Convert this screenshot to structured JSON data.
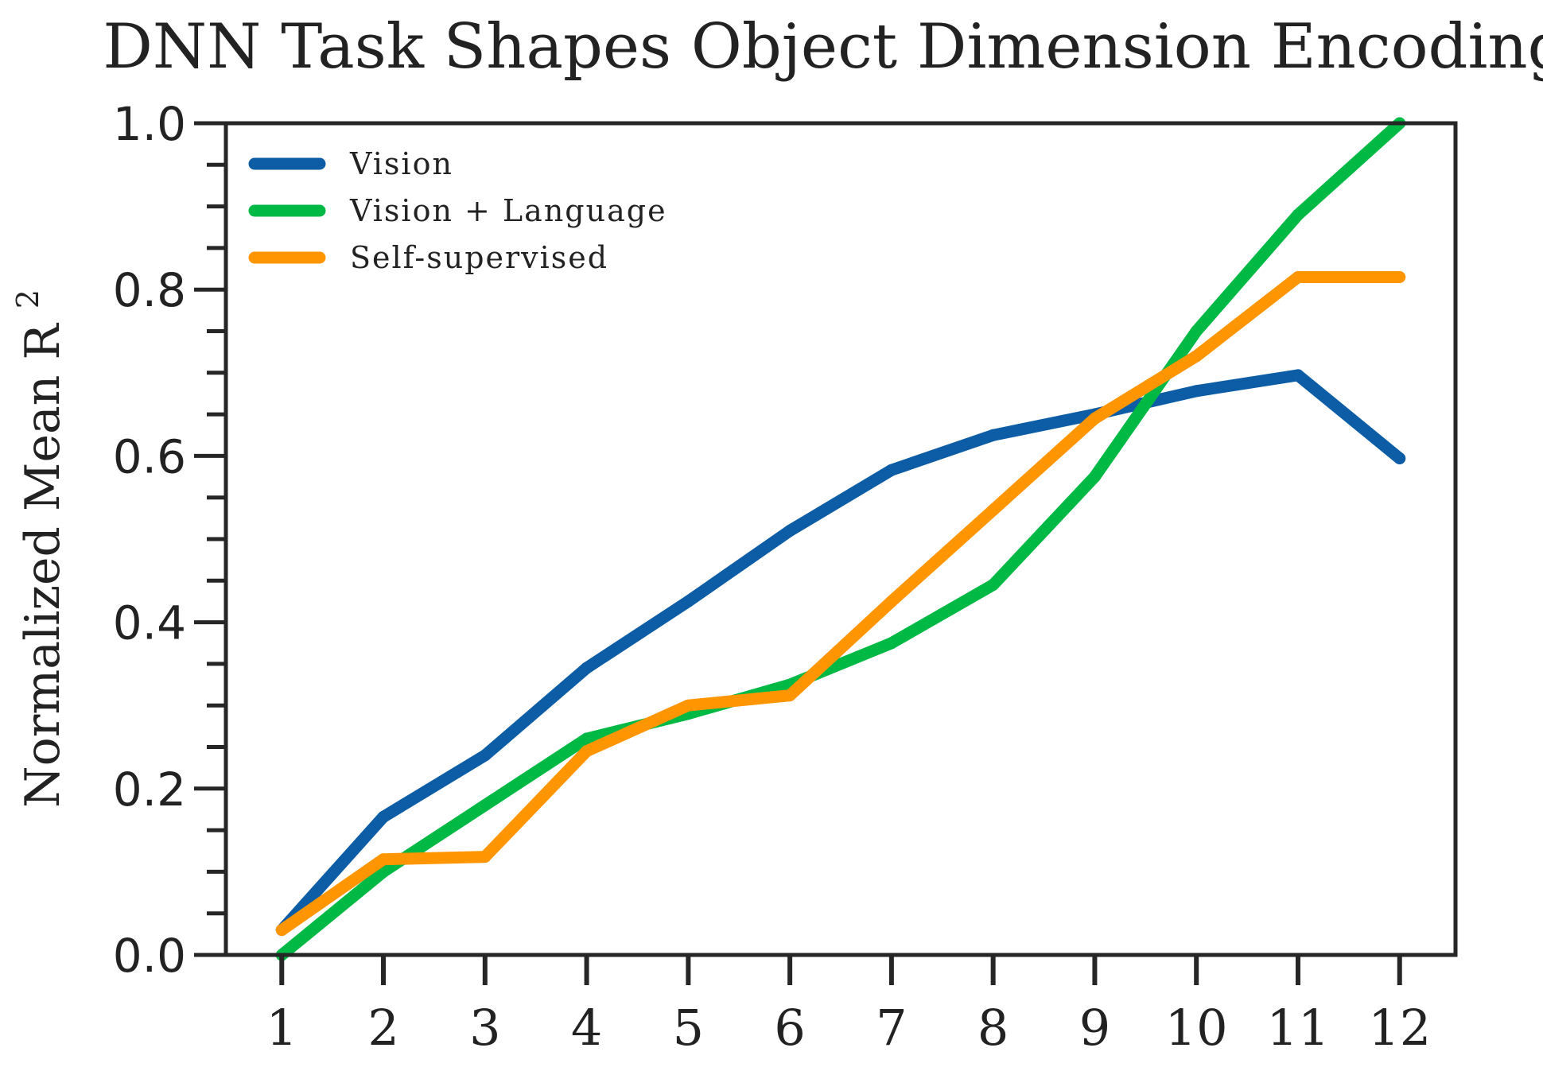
{
  "chart_data": {
    "type": "line",
    "title": "DNN Task Shapes Object Dimension Encoding",
    "xlabel": "",
    "ylabel_main": "Normalized Mean R",
    "ylabel_sup": "2",
    "x": [
      1,
      2,
      3,
      4,
      5,
      6,
      7,
      8,
      9,
      10,
      11,
      12
    ],
    "x_tick_labels": [
      "1",
      "2",
      "3",
      "4",
      "5",
      "6",
      "7",
      "8",
      "9",
      "10",
      "11",
      "12"
    ],
    "y_tick_labels": [
      "0.0",
      "0.2",
      "0.4",
      "0.6",
      "0.8",
      "1.0"
    ],
    "y_ticks": [
      0.0,
      0.2,
      0.4,
      0.6,
      0.8,
      1.0
    ],
    "ylim": [
      0.0,
      1.0
    ],
    "xlim": [
      0.45,
      12.55
    ],
    "grid": false,
    "legend_position": "top-left",
    "series": [
      {
        "name": "Vision",
        "color": "#0C5DA5",
        "values": [
          0.03,
          0.166,
          0.24,
          0.345,
          0.425,
          0.51,
          0.583,
          0.625,
          0.65,
          0.678,
          0.697,
          0.597
        ]
      },
      {
        "name": "Vision + Language",
        "color": "#00B945",
        "values": [
          0.0,
          0.1,
          0.18,
          0.26,
          0.29,
          0.325,
          0.375,
          0.445,
          0.575,
          0.75,
          0.89,
          1.0
        ]
      },
      {
        "name": "Self-supervised",
        "color": "#FF9500",
        "values": [
          0.03,
          0.115,
          0.118,
          0.245,
          0.3,
          0.312,
          0.425,
          0.535,
          0.645,
          0.72,
          0.815,
          0.815
        ]
      }
    ]
  }
}
